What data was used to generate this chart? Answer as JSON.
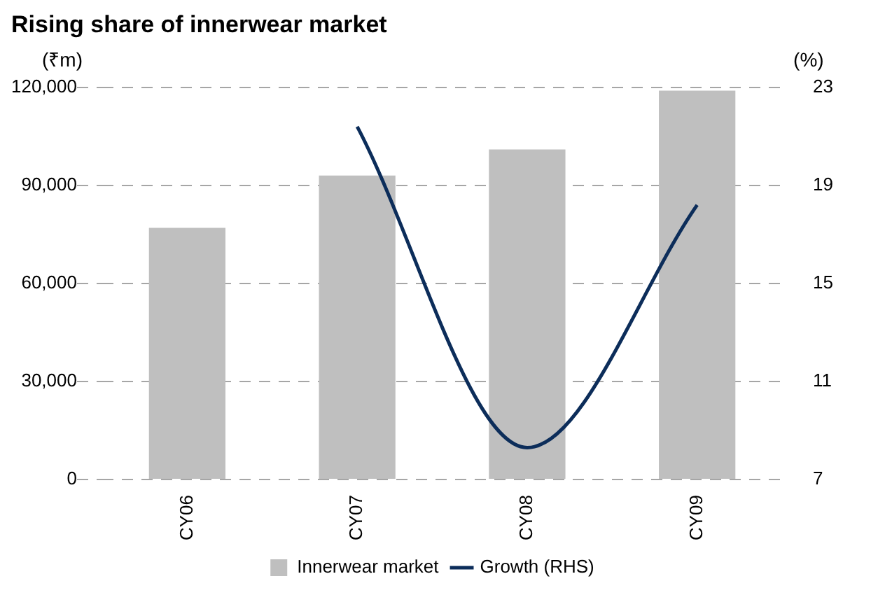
{
  "chart_data": {
    "type": "bar",
    "title": "Rising share of innerwear market",
    "ylabel": "(₹m)",
    "y2label": "(%)",
    "categories": [
      "CY06",
      "CY07",
      "CY08",
      "CY09"
    ],
    "series": [
      {
        "name": "Innerwear market",
        "color": "#bfbfbf",
        "values": [
          77000,
          93000,
          101000,
          119000
        ]
      },
      {
        "name": "Growth (RHS)",
        "type": "line",
        "axis": "y2",
        "color": "#0c2d5a",
        "values": [
          null,
          21.4,
          8.3,
          18.2
        ]
      }
    ],
    "ylim": [
      0,
      120000
    ],
    "yticks": [
      0,
      {
        "value": 30000,
        "label": "30,000"
      },
      {
        "value": 60000,
        "label": "60,000"
      },
      {
        "value": 90000,
        "label": "90,000"
      },
      {
        "value": 120000,
        "label": "120,000"
      }
    ],
    "y2lim": [
      7,
      23
    ],
    "y2ticks": [
      7,
      11,
      15,
      19,
      23
    ],
    "grid": "y",
    "legend": "bottom",
    "marker": "none"
  }
}
